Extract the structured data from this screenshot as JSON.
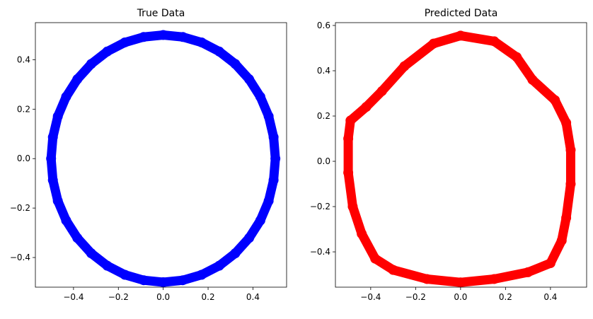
{
  "chart_data": [
    {
      "type": "scatter",
      "title": "True Data",
      "color": "#0000ff",
      "x": [
        0.5,
        0.492,
        0.47,
        0.433,
        0.383,
        0.321,
        0.25,
        0.171,
        0.087,
        0,
        -0.087,
        -0.171,
        -0.25,
        -0.321,
        -0.383,
        -0.433,
        -0.47,
        -0.492,
        -0.5,
        -0.492,
        -0.47,
        -0.433,
        -0.383,
        -0.321,
        -0.25,
        -0.171,
        -0.087,
        0,
        0.087,
        0.171,
        0.25,
        0.321,
        0.383,
        0.433,
        0.47,
        0.492
      ],
      "y": [
        0,
        0.087,
        0.171,
        0.25,
        0.321,
        0.383,
        0.433,
        0.47,
        0.492,
        0.5,
        0.492,
        0.47,
        0.433,
        0.383,
        0.321,
        0.25,
        0.171,
        0.087,
        0,
        -0.087,
        -0.171,
        -0.25,
        -0.321,
        -0.383,
        -0.433,
        -0.47,
        -0.492,
        -0.5,
        -0.492,
        -0.47,
        -0.433,
        -0.383,
        -0.321,
        -0.25,
        -0.171,
        -0.087
      ],
      "xlim": [
        -0.57,
        0.55
      ],
      "ylim": [
        -0.52,
        0.55
      ],
      "xticks": [
        {
          "value": -0.4,
          "label": "−0.4"
        },
        {
          "value": -0.2,
          "label": "−0.2"
        },
        {
          "value": 0,
          "label": "0.0"
        },
        {
          "value": 0.2,
          "label": "0.2"
        },
        {
          "value": 0.4,
          "label": "0.4"
        }
      ],
      "yticks": [
        {
          "value": -0.4,
          "label": "−0.4"
        },
        {
          "value": -0.2,
          "label": "−0.2"
        },
        {
          "value": 0,
          "label": "0.0"
        },
        {
          "value": 0.2,
          "label": "0.2"
        },
        {
          "value": 0.4,
          "label": "0.4"
        }
      ]
    },
    {
      "type": "scatter",
      "title": "Predicted Data",
      "color": "#ff0000",
      "x": [
        0,
        0.15,
        0.25,
        0.32,
        0.42,
        0.47,
        0.49,
        0.49,
        0.47,
        0.45,
        0.4,
        0.3,
        0.15,
        0,
        -0.15,
        -0.3,
        -0.38,
        -0.44,
        -0.48,
        -0.5,
        -0.5,
        -0.49,
        -0.42,
        -0.35,
        -0.25,
        -0.12
      ],
      "y": [
        0.555,
        0.53,
        0.46,
        0.36,
        0.27,
        0.17,
        0.05,
        -0.1,
        -0.25,
        -0.35,
        -0.45,
        -0.49,
        -0.52,
        -0.535,
        -0.52,
        -0.48,
        -0.43,
        -0.32,
        -0.2,
        -0.05,
        0.1,
        0.18,
        0.24,
        0.31,
        0.42,
        0.52
      ],
      "xlim": [
        -0.557,
        0.561
      ],
      "ylim": [
        -0.556,
        0.6125
      ],
      "xticks": [
        {
          "value": -0.4,
          "label": "−0.4"
        },
        {
          "value": -0.2,
          "label": "−0.2"
        },
        {
          "value": 0,
          "label": "0.0"
        },
        {
          "value": 0.2,
          "label": "0.2"
        },
        {
          "value": 0.4,
          "label": "0.4"
        }
      ],
      "yticks": [
        {
          "value": -0.4,
          "label": "−0.4"
        },
        {
          "value": -0.2,
          "label": "−0.2"
        },
        {
          "value": 0,
          "label": "0.0"
        },
        {
          "value": 0.2,
          "label": "0.2"
        },
        {
          "value": 0.4,
          "label": "0.4"
        },
        {
          "value": 0.6,
          "label": "0.6"
        }
      ]
    }
  ]
}
